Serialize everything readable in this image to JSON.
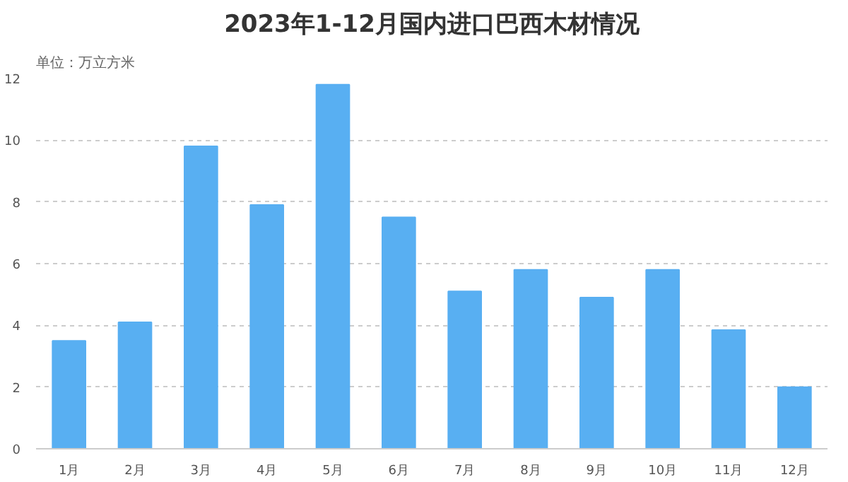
{
  "chart_data": {
    "type": "bar",
    "title": "2023年1-12月国内进口巴西木材情况",
    "subtitle": "单位：万立方米",
    "categories": [
      "1月",
      "2月",
      "3月",
      "4月",
      "5月",
      "6月",
      "7月",
      "8月",
      "9月",
      "10月",
      "11月",
      "12月"
    ],
    "values": [
      3.5,
      4.1,
      9.8,
      7.9,
      11.8,
      7.5,
      5.1,
      5.8,
      4.9,
      5.8,
      3.85,
      2.0
    ],
    "color": "#58aff2",
    "ylim": [
      0,
      12
    ],
    "yticks": [
      0,
      2,
      4,
      6,
      8,
      10,
      12
    ],
    "grid": "y"
  }
}
